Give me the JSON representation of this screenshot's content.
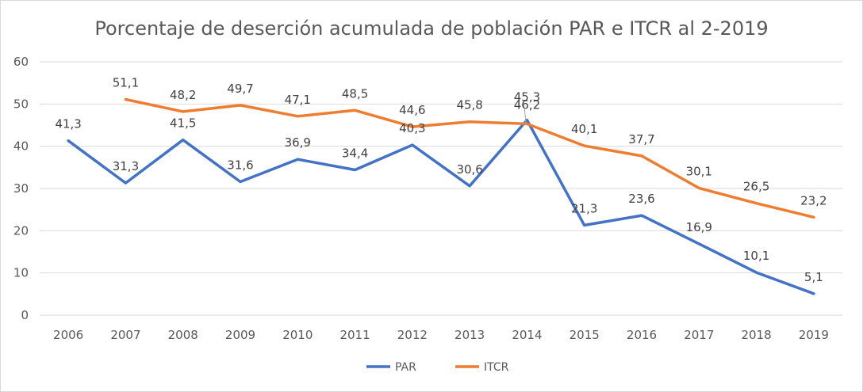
{
  "chart_data": {
    "type": "line",
    "title": "Porcentaje de deserción acumulada  de población PAR e ITCR al 2-2019",
    "xlabel": "",
    "ylabel": "",
    "ylim": [
      0,
      60
    ],
    "yticks": [
      0,
      10,
      20,
      30,
      40,
      50,
      60
    ],
    "grid": true,
    "legend_position": "bottom",
    "categories": [
      "2006",
      "2007",
      "2008",
      "2009",
      "2010",
      "2011",
      "2012",
      "2013",
      "2014",
      "2015",
      "2016",
      "2017",
      "2018",
      "2019"
    ],
    "series": [
      {
        "name": "PAR",
        "color": "#4472c4",
        "values": [
          41.3,
          31.3,
          41.5,
          31.6,
          36.9,
          34.4,
          40.3,
          30.6,
          46.2,
          21.3,
          23.6,
          16.9,
          10.1,
          5.1
        ],
        "labels": [
          "41,3",
          "31,3",
          "41,5",
          "31,6",
          "36,9",
          "34,4",
          "40,3",
          "30,6",
          "46,2",
          "21,3",
          "23,6",
          "16,9",
          "10,1",
          "5,1"
        ]
      },
      {
        "name": "ITCR",
        "color": "#ed7d31",
        "values": [
          null,
          51.1,
          48.2,
          49.7,
          47.1,
          48.5,
          44.6,
          45.8,
          45.3,
          40.1,
          37.7,
          30.1,
          26.5,
          23.2
        ],
        "labels": [
          null,
          "51,1",
          "48,2",
          "49,7",
          "47,1",
          "48,5",
          "44,6",
          "45,8",
          "45,3",
          "40,1",
          "37,7",
          "30,1",
          "26,5",
          "23,2"
        ]
      }
    ]
  }
}
